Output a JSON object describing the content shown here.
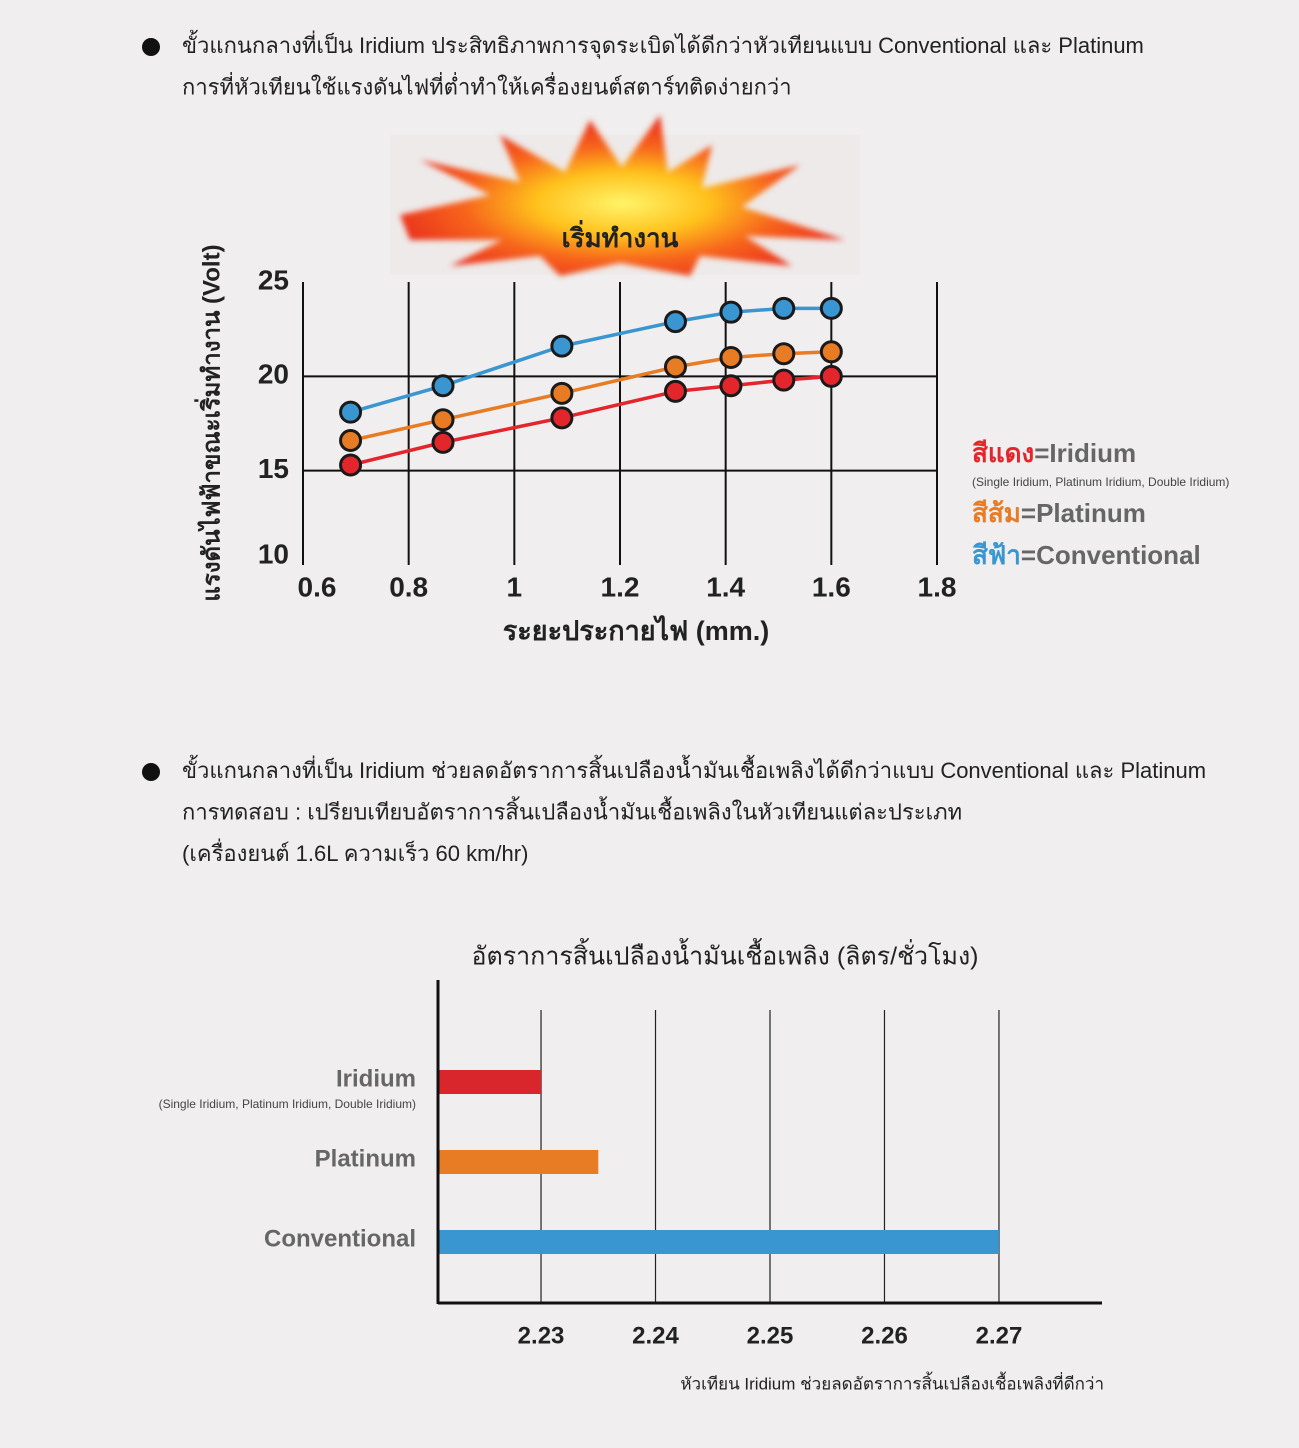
{
  "bullets": [
    {
      "lines": [
        "ขั้วแกนกลางที่เป็น Iridium ประสิทธิภาพการจุดระเบิดได้ดีกว่าหัวเทียนแบบ Conventional และ Platinum",
        "การที่หัวเทียนใช้แรงดันไฟที่ต่ำทำให้เครื่องยนต์สตาร์ทติดง่ายกว่า"
      ]
    },
    {
      "lines": [
        "ขั้วแกนกลางที่เป็น Iridium ช่วยลดอัตราการสิ้นเปลืองน้ำมันเชื้อเพลิงได้ดีกว่าแบบ Conventional และ Platinum",
        "การทดสอบ : เปรียบเทียบอัตราการสิ้นเปลืองน้ำมันเชื้อเพลิงในหัวเทียนแต่ละประเภท",
        "(เครื่องยนต์ 1.6L ความเร็ว 60 km/hr)"
      ]
    }
  ],
  "chart_data": [
    {
      "type": "line",
      "annotation": "เริ่มทำงาน",
      "x_label": "ระยะประกายไฟ (mm.)",
      "y_label": "แรงดันไฟฟ้าขณะเริ่มทำงาน (Volt)",
      "x": [
        0.69,
        0.865,
        1.09,
        1.305,
        1.41,
        1.51,
        1.6
      ],
      "xlim": [
        0.6,
        1.8
      ],
      "xticks": [
        0.6,
        0.8,
        1,
        1.2,
        1.4,
        1.6,
        1.8
      ],
      "ylim": [
        10,
        25
      ],
      "yticks": [
        10,
        15,
        20,
        25
      ],
      "grid": true,
      "legend_position": "right",
      "legend_separator": "=",
      "series": [
        {
          "name": "Iridium",
          "color_name": "สีแดง",
          "note": "(Single Iridium, Platinum Iridium, Double Iridium)",
          "color": "#e3262b",
          "values": [
            15.3,
            16.5,
            17.8,
            19.2,
            19.5,
            19.8,
            20.0
          ]
        },
        {
          "name": "Platinum",
          "color_name": "สีส้ม",
          "color": "#e87c25",
          "values": [
            16.6,
            17.7,
            19.1,
            20.5,
            21.0,
            21.2,
            21.3
          ]
        },
        {
          "name": "Conventional",
          "color_name": "สีฟ้า",
          "color": "#3996d0",
          "values": [
            18.1,
            19.5,
            21.6,
            22.9,
            23.4,
            23.6,
            23.6
          ]
        }
      ]
    },
    {
      "type": "barh",
      "title": "อัตราการสิ้นเปลืองน้ำมันเชื้อเพลิง (ลิตร/ชั่วโมง)",
      "categories": [
        "Iridium",
        "Platinum",
        "Conventional"
      ],
      "category_notes": [
        "(Single Iridium, Platinum Iridium, Double Iridium)",
        null,
        null
      ],
      "values": [
        2.23,
        2.235,
        2.27
      ],
      "colors": [
        "#d8262c",
        "#e87c25",
        "#3996d0"
      ],
      "xlim": [
        2.221,
        2.279
      ],
      "xticks": [
        2.23,
        2.24,
        2.25,
        2.26,
        2.27
      ],
      "grid": true,
      "footnote": "หัวเทียน Iridium ช่วยลดอัตราการสิ้นเปลืองเชื้อเพลิงที่ดีกว่า"
    }
  ]
}
